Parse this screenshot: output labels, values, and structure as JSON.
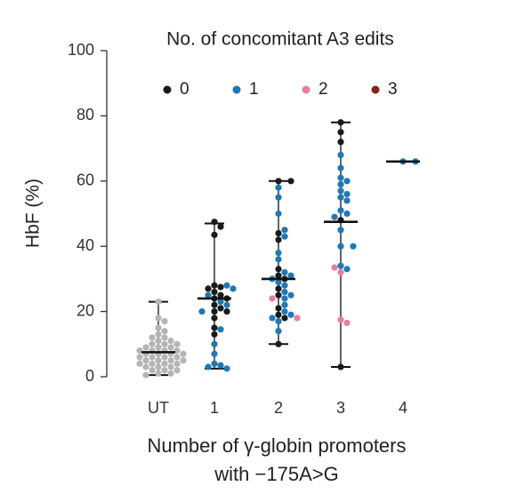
{
  "chart_data": {
    "type": "dot",
    "legend_title": "No. of concomitant A3 edits",
    "ylabel": "HbF (%)",
    "xlabel_lines": [
      "Number of γ-globin promoters",
      "with −175A>G"
    ],
    "categories": [
      "UT",
      "1",
      "2",
      "3",
      "4"
    ],
    "ylim": [
      0,
      100
    ],
    "yticks": [
      0,
      20,
      40,
      60,
      80,
      100
    ],
    "medians": [
      7.5,
      24,
      30,
      47.5,
      66
    ],
    "whiskers": [
      [
        0.5,
        23
      ],
      [
        2.5,
        47
      ],
      [
        10,
        60
      ],
      [
        3,
        78
      ],
      null
    ],
    "series": [
      {
        "color": "#b5b5b5",
        "x": [
          "UT",
          "UT",
          "UT",
          "UT",
          "UT",
          "UT",
          "UT",
          "UT",
          "UT",
          "UT",
          "UT",
          "UT",
          "UT",
          "UT",
          "UT",
          "UT",
          "UT",
          "UT",
          "UT",
          "UT",
          "UT",
          "UT",
          "UT",
          "UT",
          "UT",
          "UT",
          "UT",
          "UT",
          "UT",
          "UT",
          "UT",
          "UT",
          "UT",
          "UT",
          "UT",
          "UT",
          "UT",
          "UT",
          "UT",
          "UT",
          "UT",
          "UT",
          "UT",
          "UT",
          "UT"
        ],
        "values": [
          23,
          18,
          17,
          15,
          14,
          13,
          12,
          12,
          11,
          11,
          10,
          10,
          10,
          9,
          9,
          9,
          8,
          8,
          8,
          8,
          7,
          7,
          7,
          7,
          6,
          6,
          6,
          6,
          5,
          5,
          5,
          5,
          4,
          4,
          4,
          4,
          3,
          3,
          3,
          2,
          2,
          2,
          1,
          1,
          0.5
        ]
      },
      {
        "name": "0",
        "color": "#1a1a1a",
        "x": [
          "1",
          "1",
          "1",
          "1",
          "1",
          "1",
          "1",
          "1",
          "1",
          "1",
          "1",
          "1",
          "1",
          "1",
          "1",
          "1",
          "1",
          "2",
          "2",
          "2",
          "2",
          "2",
          "2",
          "2",
          "2",
          "2",
          "2",
          "2",
          "2",
          "2",
          "3",
          "3",
          "3",
          "3",
          "3"
        ],
        "values": [
          47.5,
          46,
          43.5,
          28,
          27.5,
          27,
          26,
          25,
          24,
          24,
          22,
          21,
          20,
          20,
          18,
          15,
          13,
          60,
          60,
          44,
          42,
          33,
          31,
          30,
          27,
          25,
          21,
          19,
          18,
          10,
          78,
          75,
          72,
          48,
          3
        ]
      },
      {
        "name": "1",
        "color": "#1f78b4",
        "x": [
          "1",
          "1",
          "1",
          "1",
          "1",
          "1",
          "1",
          "1",
          "1",
          "1",
          "1",
          "1",
          "1",
          "2",
          "2",
          "2",
          "2",
          "2",
          "2",
          "2",
          "2",
          "2",
          "2",
          "2",
          "2",
          "2",
          "2",
          "2",
          "2",
          "2",
          "2",
          "2",
          "2",
          "2",
          "3",
          "3",
          "3",
          "3",
          "3",
          "3",
          "3",
          "3",
          "3",
          "3",
          "3",
          "3",
          "3",
          "3",
          "3",
          "3",
          "3",
          "4",
          "4"
        ],
        "values": [
          28,
          27,
          25,
          23,
          22,
          20,
          14.5,
          10,
          7,
          4,
          3.5,
          3,
          2.5,
          58,
          55,
          50,
          45,
          43,
          38,
          36,
          32,
          31,
          30,
          29,
          28,
          26,
          25,
          24,
          22,
          20,
          19,
          18,
          17,
          14,
          68,
          64,
          61,
          60,
          59,
          57,
          56,
          55,
          54,
          51,
          50,
          49,
          45,
          40,
          40,
          34,
          33,
          66,
          66
        ]
      },
      {
        "name": "2",
        "color": "#e87ca3",
        "x": [
          "2",
          "2",
          "3",
          "3",
          "3",
          "3"
        ],
        "values": [
          24,
          18,
          33.5,
          32,
          17.5,
          16.5
        ]
      },
      {
        "name": "3",
        "color": "#8b1c1c",
        "x": [],
        "values": []
      }
    ]
  }
}
